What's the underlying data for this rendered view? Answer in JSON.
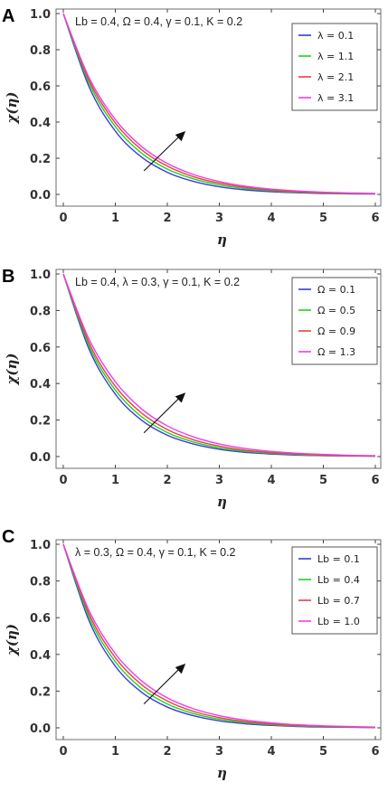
{
  "chart_data": [
    {
      "type": "line",
      "panel": "A",
      "annotation": "Lb = 0.4, Ω = 0.4, γ = 0.1, K = 0.2",
      "xlabel": "η",
      "ylabel": "χ(η)",
      "xlim": [
        0,
        6
      ],
      "ylim": [
        -0.05,
        1.05
      ],
      "xticks": [
        "0",
        "1",
        "2",
        "3",
        "4",
        "5",
        "6"
      ],
      "yticks": [
        "0.0",
        "0.2",
        "0.4",
        "0.6",
        "0.8",
        "1.0"
      ],
      "legend_position": "top-right",
      "grid": false,
      "arrow": "increasing λ",
      "x": [
        0,
        0.5,
        1,
        1.5,
        2,
        2.5,
        3,
        3.5,
        4,
        4.5,
        5,
        5.5,
        6
      ],
      "series": [
        {
          "name": "λ = 0.1",
          "color": "#3b3bd6",
          "values": [
            1.0,
            0.592,
            0.35,
            0.207,
            0.122,
            0.072,
            0.042,
            0.025,
            0.015,
            0.009,
            0.005,
            0.003,
            0.002
          ]
        },
        {
          "name": "λ =  1.1",
          "color": "#1fd41f",
          "values": [
            1.0,
            0.612,
            0.375,
            0.229,
            0.14,
            0.086,
            0.053,
            0.032,
            0.02,
            0.012,
            0.007,
            0.004,
            0.003
          ]
        },
        {
          "name": "λ =  2.1",
          "color": "#e8413a",
          "values": [
            1.0,
            0.628,
            0.395,
            0.248,
            0.156,
            0.098,
            0.062,
            0.039,
            0.024,
            0.015,
            0.009,
            0.006,
            0.004
          ]
        },
        {
          "name": "λ =  3.1",
          "color": "#ee3cee",
          "values": [
            1.0,
            0.643,
            0.414,
            0.266,
            0.171,
            0.11,
            0.071,
            0.045,
            0.029,
            0.019,
            0.012,
            0.008,
            0.005
          ]
        }
      ]
    },
    {
      "type": "line",
      "panel": "B",
      "annotation": "Lb = 0.4, λ = 0.3, γ = 0.1, K = 0.2",
      "xlabel": "η",
      "ylabel": "χ(η)",
      "xlim": [
        0,
        6
      ],
      "ylim": [
        -0.05,
        1.05
      ],
      "xticks": [
        "0",
        "1",
        "2",
        "3",
        "4",
        "5",
        "6"
      ],
      "yticks": [
        "0.0",
        "0.2",
        "0.4",
        "0.6",
        "0.8",
        "1.0"
      ],
      "legend_position": "top-right",
      "grid": false,
      "arrow": "increasing Ω",
      "x": [
        0,
        0.5,
        1,
        1.5,
        2,
        2.5,
        3,
        3.5,
        4,
        4.5,
        5,
        5.5,
        6
      ],
      "series": [
        {
          "name": "Ω = 0.1",
          "color": "#3b3bd6",
          "values": [
            1.0,
            0.585,
            0.342,
            0.2,
            0.117,
            0.069,
            0.04,
            0.023,
            0.014,
            0.008,
            0.005,
            0.003,
            0.002
          ]
        },
        {
          "name": "Ω =  0.5",
          "color": "#1fd41f",
          "values": [
            1.0,
            0.603,
            0.364,
            0.219,
            0.132,
            0.08,
            0.048,
            0.029,
            0.018,
            0.011,
            0.006,
            0.004,
            0.002
          ]
        },
        {
          "name": "Ω = 0.9",
          "color": "#e8413a",
          "values": [
            1.0,
            0.62,
            0.385,
            0.239,
            0.148,
            0.092,
            0.057,
            0.035,
            0.022,
            0.014,
            0.008,
            0.005,
            0.003
          ]
        },
        {
          "name": "Ω =  1.3",
          "color": "#ee3cee",
          "values": [
            1.0,
            0.64,
            0.41,
            0.262,
            0.168,
            0.108,
            0.069,
            0.044,
            0.028,
            0.018,
            0.012,
            0.007,
            0.005
          ]
        }
      ]
    },
    {
      "type": "line",
      "panel": "C",
      "annotation": "λ = 0.3, Ω = 0.4, γ = 0.1, K = 0.2",
      "xlabel": "η",
      "ylabel": "χ(η)",
      "xlim": [
        0,
        6
      ],
      "ylim": [
        -0.05,
        1.05
      ],
      "xticks": [
        "0",
        "1",
        "2",
        "3",
        "4",
        "5",
        "6"
      ],
      "yticks": [
        "0.0",
        "0.2",
        "0.4",
        "0.6",
        "0.8",
        "1.0"
      ],
      "legend_position": "top-right",
      "grid": false,
      "arrow": "increasing Lb",
      "x": [
        0,
        0.5,
        1,
        1.5,
        2,
        2.5,
        3,
        3.5,
        4,
        4.5,
        5,
        5.5,
        6
      ],
      "series": [
        {
          "name": "Lb = 0.1",
          "color": "#3b3bd6",
          "values": [
            1.0,
            0.58,
            0.336,
            0.195,
            0.113,
            0.066,
            0.038,
            0.022,
            0.013,
            0.007,
            0.004,
            0.003,
            0.001
          ]
        },
        {
          "name": "Lb = 0.4",
          "color": "#1fd41f",
          "values": [
            1.0,
            0.6,
            0.36,
            0.216,
            0.13,
            0.078,
            0.047,
            0.028,
            0.017,
            0.01,
            0.006,
            0.004,
            0.002
          ]
        },
        {
          "name": "Lb = 0.7",
          "color": "#e8413a",
          "values": [
            1.0,
            0.618,
            0.382,
            0.236,
            0.146,
            0.09,
            0.056,
            0.034,
            0.021,
            0.013,
            0.008,
            0.005,
            0.003
          ]
        },
        {
          "name": "Lb =  1.0",
          "color": "#ee3cee",
          "values": [
            1.0,
            0.636,
            0.404,
            0.257,
            0.163,
            0.104,
            0.066,
            0.042,
            0.027,
            0.017,
            0.011,
            0.007,
            0.004
          ]
        }
      ]
    }
  ]
}
